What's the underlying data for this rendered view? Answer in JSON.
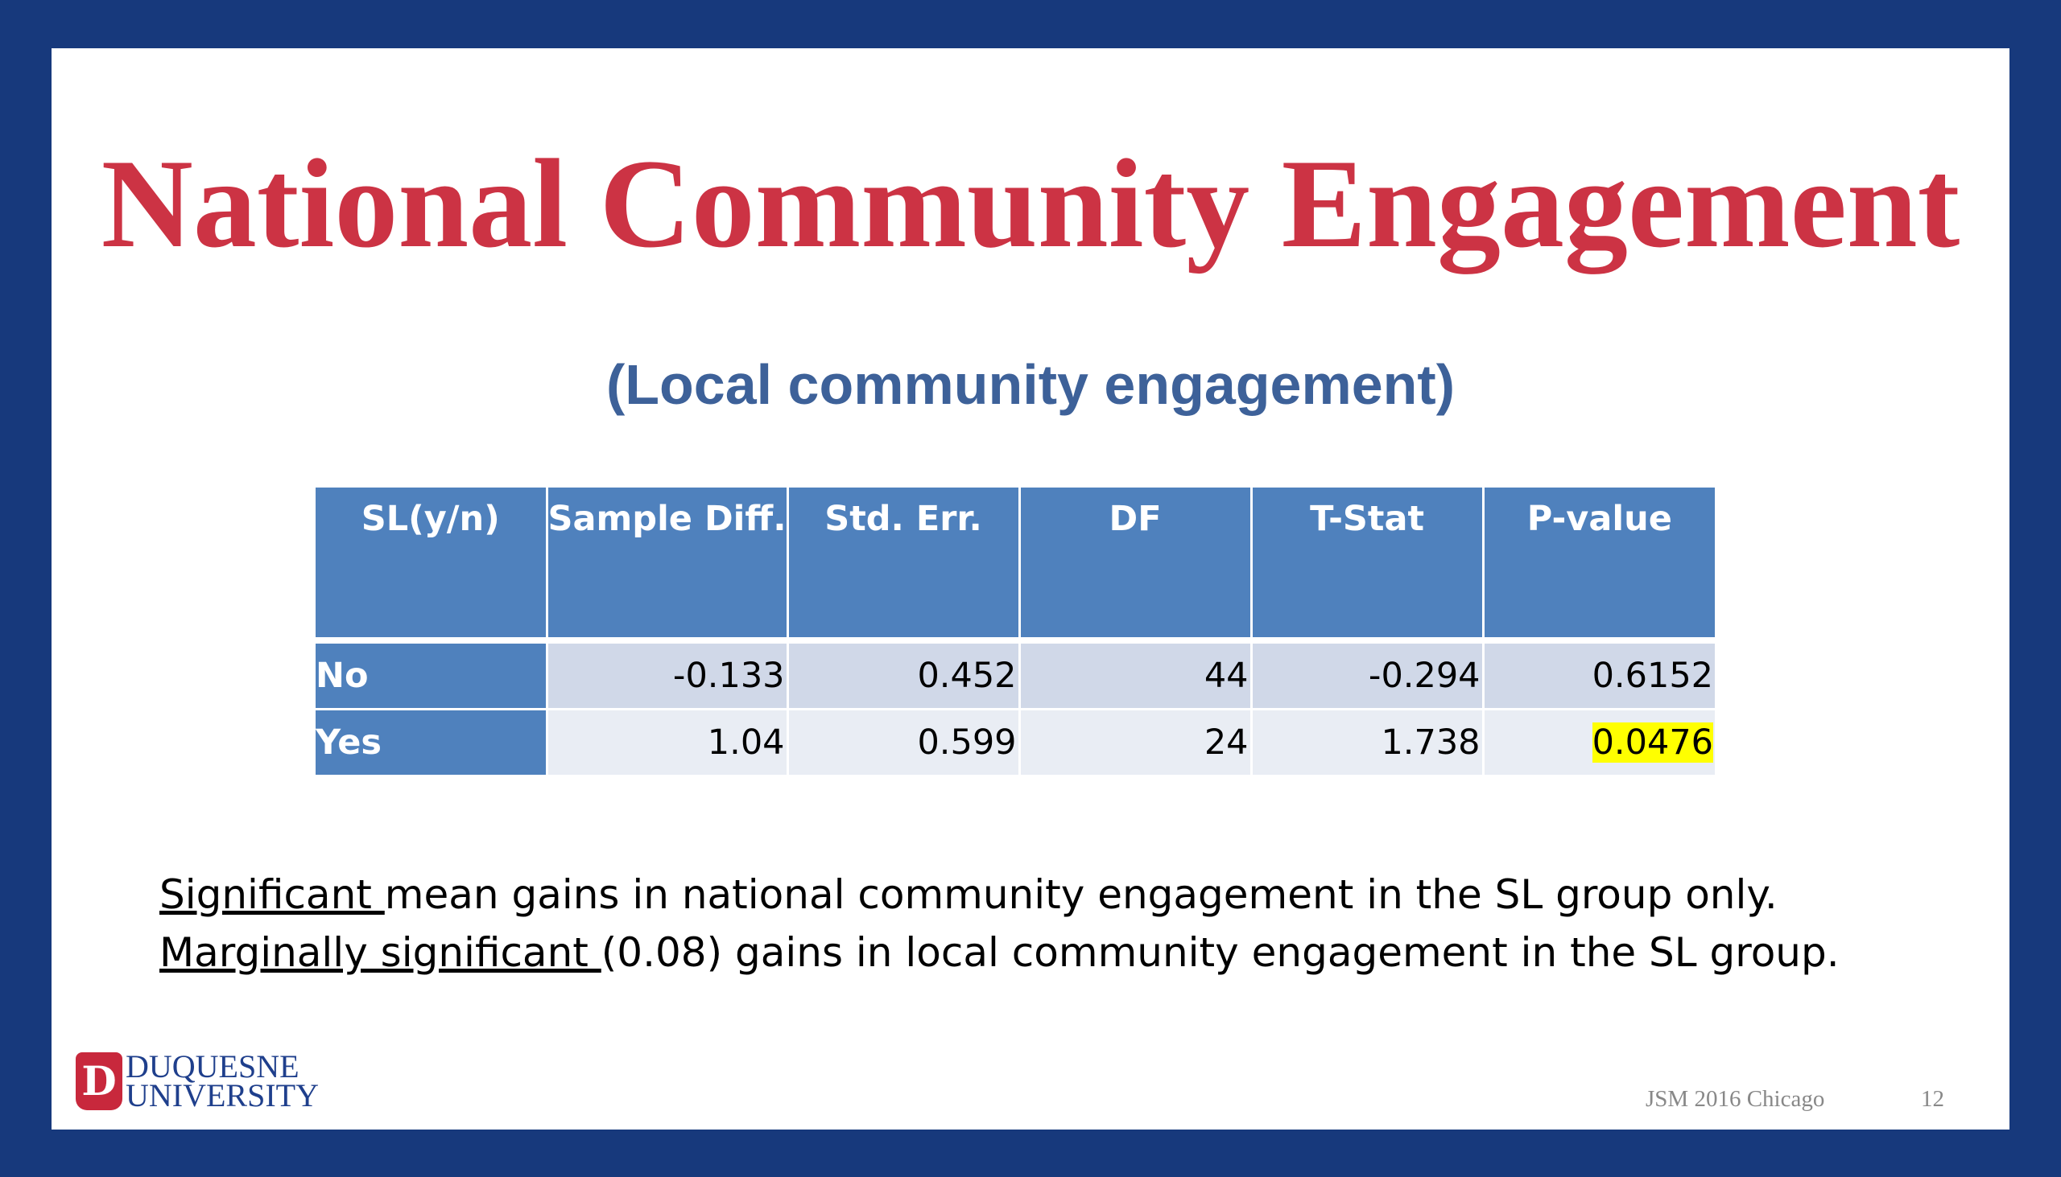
{
  "slide": {
    "title": "National Community Engagement",
    "subtitle": "(Local community engagement)"
  },
  "table": {
    "headers": [
      "SL(y/n)",
      "Sample Diff.",
      "Std. Err.",
      "DF",
      "T-Stat",
      "P-value"
    ],
    "rows": [
      {
        "label": "No",
        "sample_diff": "-0.133",
        "std_err": "0.452",
        "df": "44",
        "t_stat": "-0.294",
        "p_value": "0.6152"
      },
      {
        "label": "Yes",
        "sample_diff": "1.04",
        "std_err": "0.599",
        "df": "24",
        "t_stat": "1.738",
        "p_value": "0.0476"
      }
    ],
    "highlight_color": "#ffff00"
  },
  "notes": [
    {
      "underlined": "Significant ",
      "rest": "mean gains in national community engagement in the SL group only."
    },
    {
      "underlined": "Marginally significant ",
      "rest": "(0.08) gains in local community engagement in the SL group."
    }
  ],
  "logo": {
    "mark": "D",
    "line1": "DUQUESNE",
    "line2": "UNIVERSITY"
  },
  "footer": {
    "event": "JSM 2016 Chicago",
    "page": "12"
  },
  "colors": {
    "frame": "#17397c",
    "title": "#cc3344",
    "subtitle": "#3d6199",
    "header_fill": "#4f81bd"
  }
}
